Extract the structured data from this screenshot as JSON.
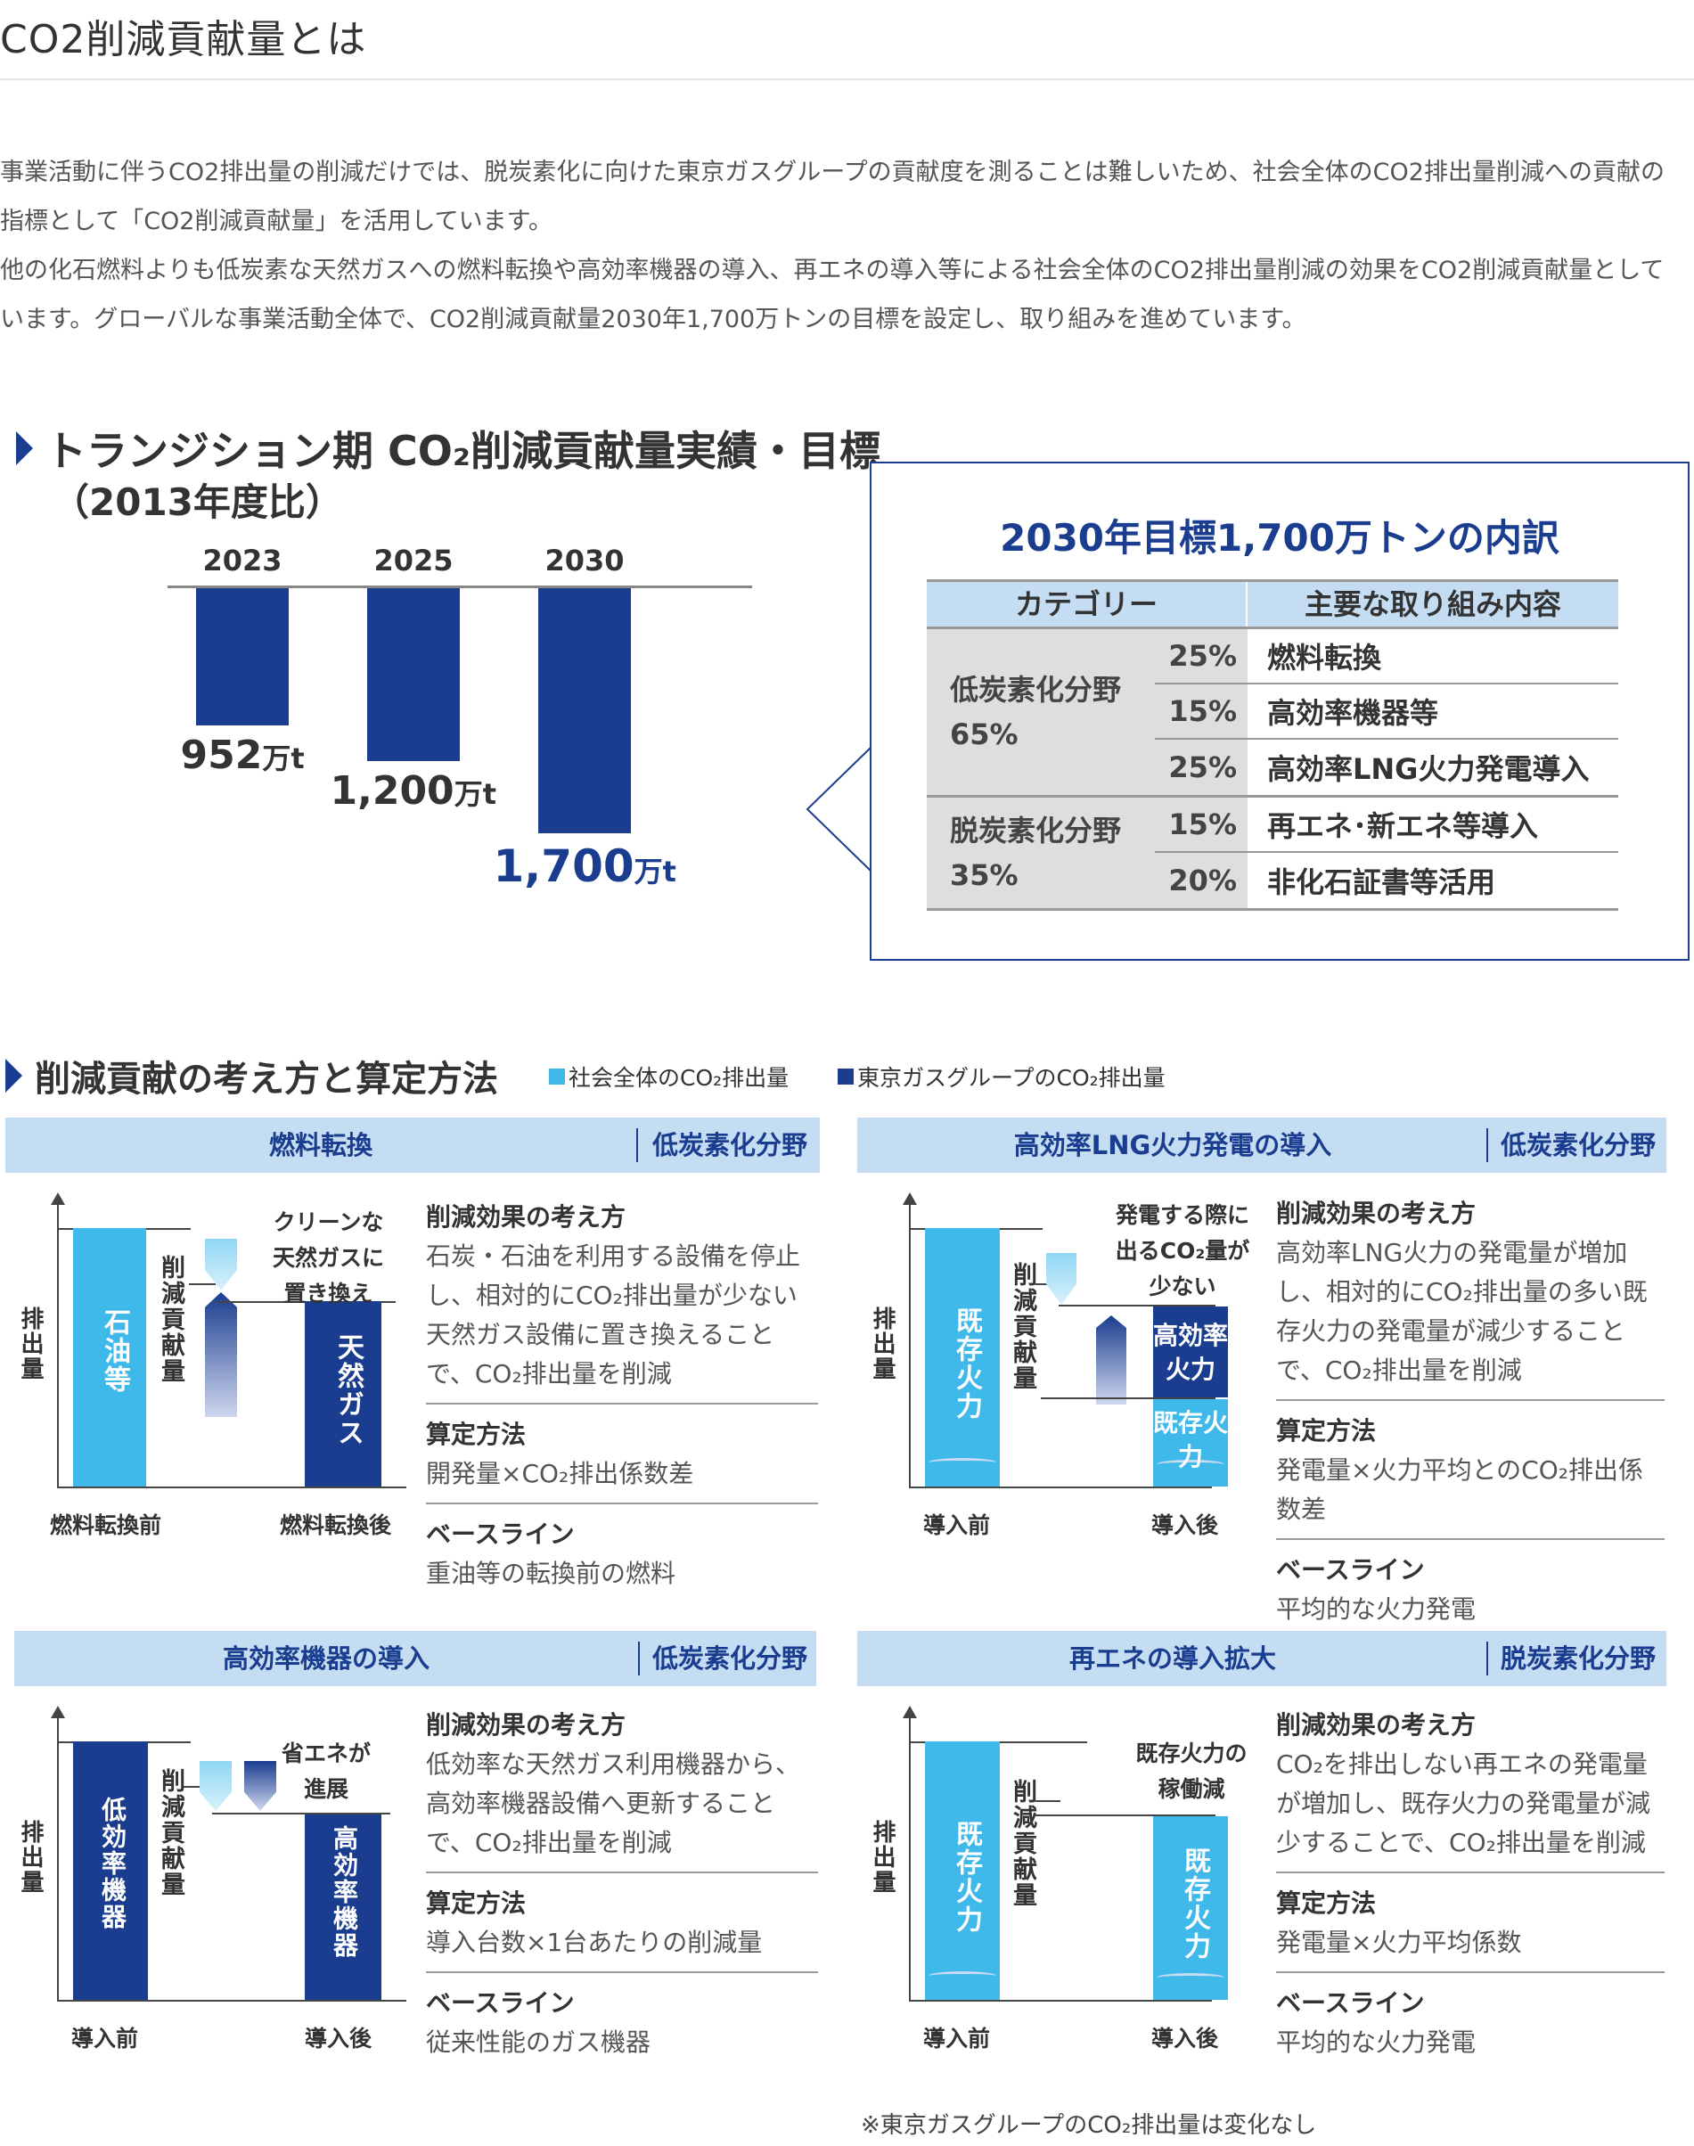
{
  "page_title": "CO2削減貢献量とは",
  "paragraph1": "事業活動に伴うCO2排出量の削減だけでは、脱炭素化に向けた東京ガスグループの貢献度を測ることは難しいため、社会全体のCO2排出量削減への貢献の指標として「CO2削減貢献量」を活用しています。",
  "paragraph2": "他の化石燃料よりも低炭素な天然ガスへの燃料転換や高効率機器の導入、再エネの導入等による社会全体のCO2排出量削減の効果をCO2削減貢献量としています。グローバルな事業活動全体で、CO2削減貢献量2030年1,700万トンの目標を設定し、取り組みを進めています。",
  "transition": {
    "heading": "トランジション期 CO₂削減貢献量実績・目標",
    "subheading": "（2013年度比）"
  },
  "chart_data": {
    "type": "bar",
    "categories": [
      "2023",
      "2025",
      "2030"
    ],
    "values": [
      952,
      1200,
      1700
    ],
    "value_labels": [
      "952",
      "1,200",
      "1,700"
    ],
    "unit": "万t",
    "title": "",
    "xlabel": "",
    "ylabel": "",
    "ylim": [
      0,
      1700
    ],
    "orientation": "downward",
    "grid": false,
    "colors": {
      "bar": "#1a3d8f",
      "highlight_label": "#1a3d8f"
    }
  },
  "breakdown": {
    "title": "2030年目標1,700万トンの内訳",
    "col_category": "カテゴリー",
    "col_content": "主要な取り組み内容",
    "groups": [
      {
        "category": "低炭素化分野",
        "share": "65%",
        "rows": [
          {
            "pct": "25%",
            "item": "燃料転換"
          },
          {
            "pct": "15%",
            "item": "高効率機器等"
          },
          {
            "pct": "25%",
            "item": "高効率LNG火力発電導入"
          }
        ]
      },
      {
        "category": "脱炭素化分野",
        "share": "35%",
        "rows": [
          {
            "pct": "15%",
            "item": "再エネ･新エネ等導入"
          },
          {
            "pct": "20%",
            "item": "非化石証書等活用"
          }
        ]
      }
    ]
  },
  "method": {
    "heading": "削減貢献の考え方と算定方法",
    "legend_society": "社会全体のCO₂排出量",
    "legend_tokyogas": "東京ガスグループのCO₂排出量"
  },
  "labels": {
    "emission": "排出量",
    "reduction": "削減貢献量",
    "effect_head": "削減効果の考え方",
    "calc_head": "算定方法",
    "baseline_head": "ベースライン",
    "before": "導入前",
    "after": "導入後"
  },
  "cards": {
    "fuel": {
      "title": "燃料転換",
      "field": "低炭素化分野",
      "bar_before": "石油等",
      "bar_after": "天然ガス",
      "note": [
        "クリーンな",
        "天然ガスに",
        "置き換え"
      ],
      "x_before": "燃料転換前",
      "x_after": "燃料転換後",
      "effect": "石炭・石油を利用する設備を停止し、相対的にCO₂排出量が少ない天然ガス設備に置き換えることで、CO₂排出量を削減",
      "calc": "開発量×CO₂排出係数差",
      "baseline": "重油等の転換前の燃料"
    },
    "lng": {
      "title": "高効率LNG火力発電の導入",
      "field": "低炭素化分野",
      "bar_before": "既存火力",
      "bar_after_top": "高効率火力",
      "bar_after_bottom": "既存火力",
      "note": [
        "発電する際に",
        "出るCO₂量が",
        "少ない"
      ],
      "effect": "高効率LNG火力の発電量が増加し、相対的にCO₂排出量の多い既存火力の発電量が減少することで、CO₂排出量を削減",
      "calc": "発電量×火力平均とのCO₂排出係数差",
      "baseline": "平均的な火力発電"
    },
    "equip": {
      "title": "高効率機器の導入",
      "field": "低炭素化分野",
      "bar_before": "低効率機器",
      "bar_after": "高効率機器",
      "note": [
        "省エネが",
        "進展"
      ],
      "effect": "低効率な天然ガス利用機器から、高効率機器設備へ更新することで、CO₂排出量を削減",
      "calc": "導入台数×1台あたりの削減量",
      "baseline": "従来性能のガス機器"
    },
    "renew": {
      "title": "再エネの導入拡大",
      "field": "脱炭素化分野",
      "bar_before": "既存火力",
      "bar_after": "既存火力",
      "note": [
        "既存火力の",
        "稼働減"
      ],
      "effect": "CO₂を排出しない再エネの発電量が増加し、既存火力の発電量が減少することで、CO₂排出量を削減",
      "calc": "発電量×火力平均係数",
      "baseline": "平均的な火力発電"
    }
  },
  "footnote": "※東京ガスグループのCO₂排出量は変化なし"
}
